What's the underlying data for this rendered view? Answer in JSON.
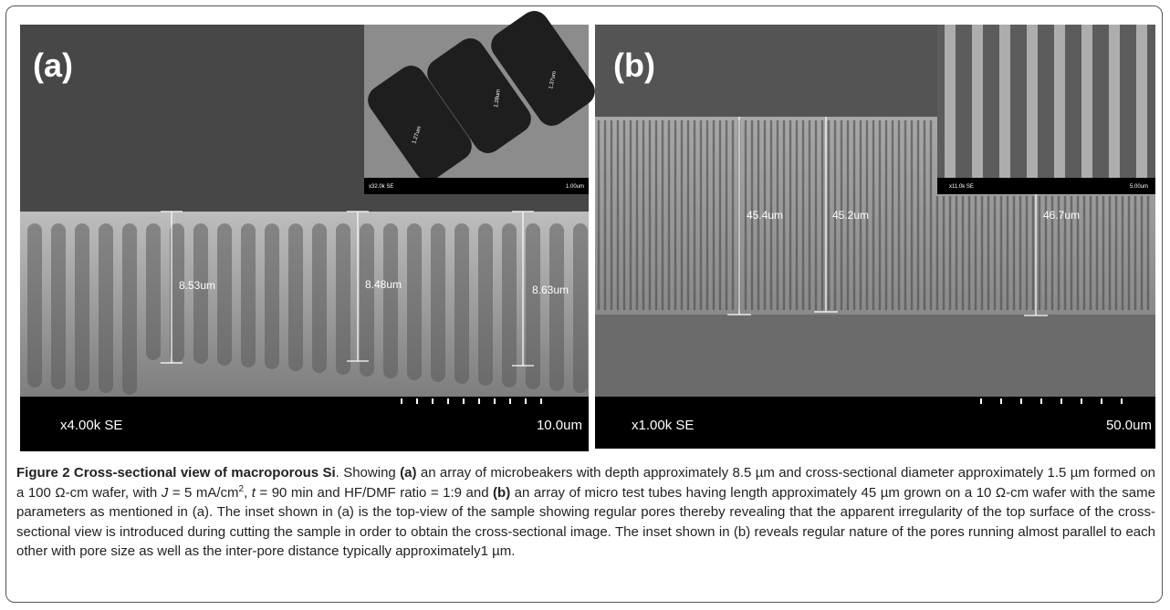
{
  "figure": {
    "panel_a": {
      "label": "(a)",
      "measures": [
        "8.53um",
        "8.48um",
        "8.63um"
      ],
      "magnification": "x4.00k SE",
      "scale": "10.0um",
      "inset": {
        "measures": [
          "1.27um",
          "1.28um",
          "1.37um"
        ],
        "magnification": "x32.0k SE",
        "scale": "1.00um"
      }
    },
    "panel_b": {
      "label": "(b)",
      "measures": [
        "45.4um",
        "45.2um",
        "46.7um"
      ],
      "magnification": "x1.00k SE",
      "scale": "50.0um",
      "inset": {
        "magnification": "x11.0k SE",
        "scale": "5.00um"
      }
    }
  },
  "caption": {
    "runs": [
      "Figure 2 Cross-sectional view of macroporous Si",
      ". Showing ",
      "(a)",
      " an array of microbeakers with depth approximately 8.5 µm and cross-sectional diameter approximately 1.5 µm formed on a 100 Ω-cm wafer, with ",
      "J",
      " = 5 mA/cm",
      "2",
      ", ",
      "t",
      " = 90 min and HF/DMF ratio = 1:9 and ",
      "(b)",
      " an array of micro test tubes having length approximately 45 µm grown on a 10 Ω-cm wafer with the same parameters as mentioned in (a). The inset shown in (a) is the top-view of the sample showing regular pores thereby revealing that the apparent irregularity of the top surface of the cross-sectional view is introduced during cutting the sample in order to obtain the cross-sectional image. The inset shown in (b) reveals regular nature of the pores running almost parallel to each other with pore size as well as the inter-pore distance typically approximately1 µm."
    ]
  }
}
